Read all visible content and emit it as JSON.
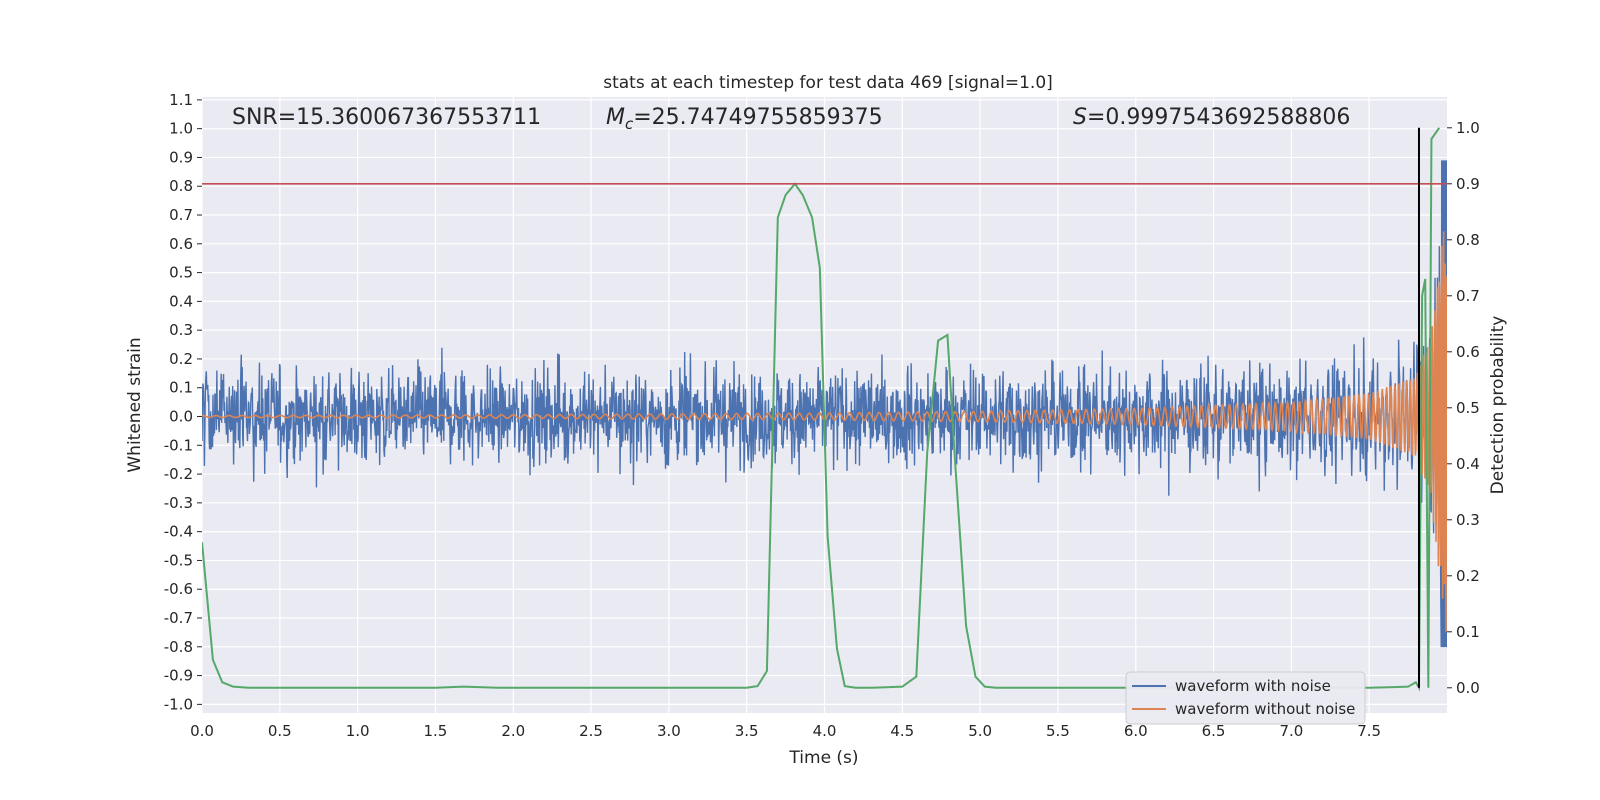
{
  "chart_data": {
    "type": "line",
    "title": "stats at each timestep for test data 469 [signal=1.0]",
    "xlabel": "Time (s)",
    "ylabel": "Whitened strain",
    "y2label": "Detection probability",
    "xlim": [
      0,
      8
    ],
    "ylim": [
      -1.03,
      1.11
    ],
    "y2lim": [
      -0.045,
      1.055
    ],
    "xticks": [
      "0.0",
      "0.5",
      "1.0",
      "1.5",
      "2.0",
      "2.5",
      "3.0",
      "3.5",
      "4.0",
      "4.5",
      "5.0",
      "5.5",
      "6.0",
      "6.5",
      "7.0",
      "7.5"
    ],
    "yticks": [
      "-1.0",
      "-0.9",
      "-0.8",
      "-0.7",
      "-0.6",
      "-0.5",
      "-0.4",
      "-0.3",
      "-0.2",
      "-0.1",
      "0.0",
      "0.1",
      "0.2",
      "0.3",
      "0.4",
      "0.5",
      "0.6",
      "0.7",
      "0.8",
      "0.9",
      "1.0",
      "1.1"
    ],
    "y2ticks": [
      "0.0",
      "0.1",
      "0.2",
      "0.3",
      "0.4",
      "0.5",
      "0.6",
      "0.7",
      "0.8",
      "0.9",
      "1.0"
    ],
    "grid": true,
    "legend_position": "lower right",
    "annotations": {
      "snr": "SNR=15.360067367553711",
      "mc_symbol": "M",
      "mc_sub": "c",
      "mc_value": "=25.74749755859375",
      "s_symbol": "S",
      "s_value": "=0.9997543692588806"
    },
    "threshold_line": {
      "axis": "y2",
      "value": 0.9,
      "color": "#c44e52"
    },
    "vertical_line": {
      "x": 7.82,
      "y2_range": [
        0,
        1.0
      ],
      "color": "#000000"
    },
    "series": [
      {
        "name": "waveform with noise",
        "color": "#4c72b0",
        "axis": "y",
        "description_envelope": {
          "typical_abs": 0.18,
          "peak_max": 0.53,
          "peak_min": -0.46,
          "end_value": 0.89
        }
      },
      {
        "name": "waveform without noise",
        "color": "#dd8452",
        "axis": "y",
        "amplitude_points": {
          "x": [
            0,
            2,
            4,
            5,
            6,
            7,
            7.5,
            7.8,
            7.9,
            7.95,
            8.0
          ],
          "amp": [
            0.003,
            0.006,
            0.012,
            0.018,
            0.028,
            0.05,
            0.08,
            0.14,
            0.3,
            0.55,
            0.78
          ]
        }
      },
      {
        "name": "",
        "color": "#55a868",
        "axis": "y2",
        "x": [
          0.0,
          0.07,
          0.13,
          0.2,
          0.3,
          0.5,
          1.0,
          1.5,
          1.68,
          1.9,
          2.5,
          3.0,
          3.5,
          3.57,
          3.63,
          3.7,
          3.75,
          3.81,
          3.86,
          3.92,
          3.97,
          4.02,
          4.08,
          4.13,
          4.2,
          4.3,
          4.5,
          4.59,
          4.66,
          4.73,
          4.79,
          4.84,
          4.91,
          4.97,
          5.03,
          5.1,
          5.5,
          6.0,
          6.5,
          7.0,
          7.5,
          7.75,
          7.8,
          7.82,
          7.84,
          7.86,
          7.88,
          7.9,
          7.95
        ],
        "values": [
          0.26,
          0.05,
          0.01,
          0.002,
          0.0,
          0.0,
          0.0,
          0.0,
          0.002,
          0.0,
          0.0,
          0.0,
          0.0,
          0.003,
          0.03,
          0.84,
          0.88,
          0.9,
          0.88,
          0.84,
          0.75,
          0.27,
          0.07,
          0.003,
          0.0,
          0.0,
          0.002,
          0.02,
          0.42,
          0.62,
          0.63,
          0.4,
          0.11,
          0.02,
          0.002,
          0.0,
          0.0,
          0.0,
          0.0,
          0.0,
          0.0,
          0.002,
          0.01,
          0.0,
          0.7,
          0.73,
          0.0,
          0.98,
          1.0
        ]
      }
    ]
  }
}
